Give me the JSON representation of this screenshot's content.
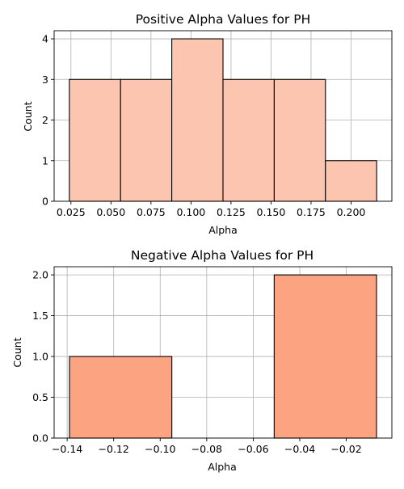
{
  "chart_data": [
    {
      "type": "bar",
      "subtype": "histogram",
      "title": "Positive Alpha Values for PH",
      "xlabel": "Alpha",
      "ylabel": "Count",
      "bin_edges": [
        0.024,
        0.056,
        0.088,
        0.12,
        0.152,
        0.184,
        0.216
      ],
      "values": [
        3,
        3,
        4,
        3,
        3,
        1
      ],
      "xlim": [
        0.0145,
        0.2255
      ],
      "ylim": [
        0,
        4.2
      ],
      "xticks": [
        0.025,
        0.05,
        0.075,
        0.1,
        0.125,
        0.15,
        0.175,
        0.2
      ],
      "xtick_labels": [
        "0.025",
        "0.050",
        "0.075",
        "0.100",
        "0.125",
        "0.150",
        "0.175",
        "0.200"
      ],
      "yticks": [
        0,
        1,
        2,
        3,
        4
      ],
      "ytick_labels": [
        "0",
        "1",
        "2",
        "3",
        "4"
      ],
      "grid": true,
      "bar_color": "#fcc5b0",
      "bar_edge_color": "#000000"
    },
    {
      "type": "bar",
      "subtype": "histogram",
      "title": "Negative Alpha Values for PH",
      "xlabel": "Alpha",
      "ylabel": "Count",
      "bin_edges": [
        -0.139,
        -0.095,
        -0.051,
        -0.007
      ],
      "values": [
        1,
        0,
        2
      ],
      "xlim": [
        -0.1456,
        -0.0004
      ],
      "ylim": [
        0,
        2.1
      ],
      "xticks": [
        -0.14,
        -0.12,
        -0.1,
        -0.08,
        -0.06,
        -0.04,
        -0.02
      ],
      "xtick_labels": [
        "−0.14",
        "−0.12",
        "−0.10",
        "−0.08",
        "−0.06",
        "−0.04",
        "−0.02"
      ],
      "yticks": [
        0,
        0.5,
        1,
        1.5,
        2
      ],
      "ytick_labels": [
        "0.0",
        "0.5",
        "1.0",
        "1.5",
        "2.0"
      ],
      "grid": true,
      "bar_color": "#fca482",
      "bar_edge_color": "#000000"
    }
  ]
}
